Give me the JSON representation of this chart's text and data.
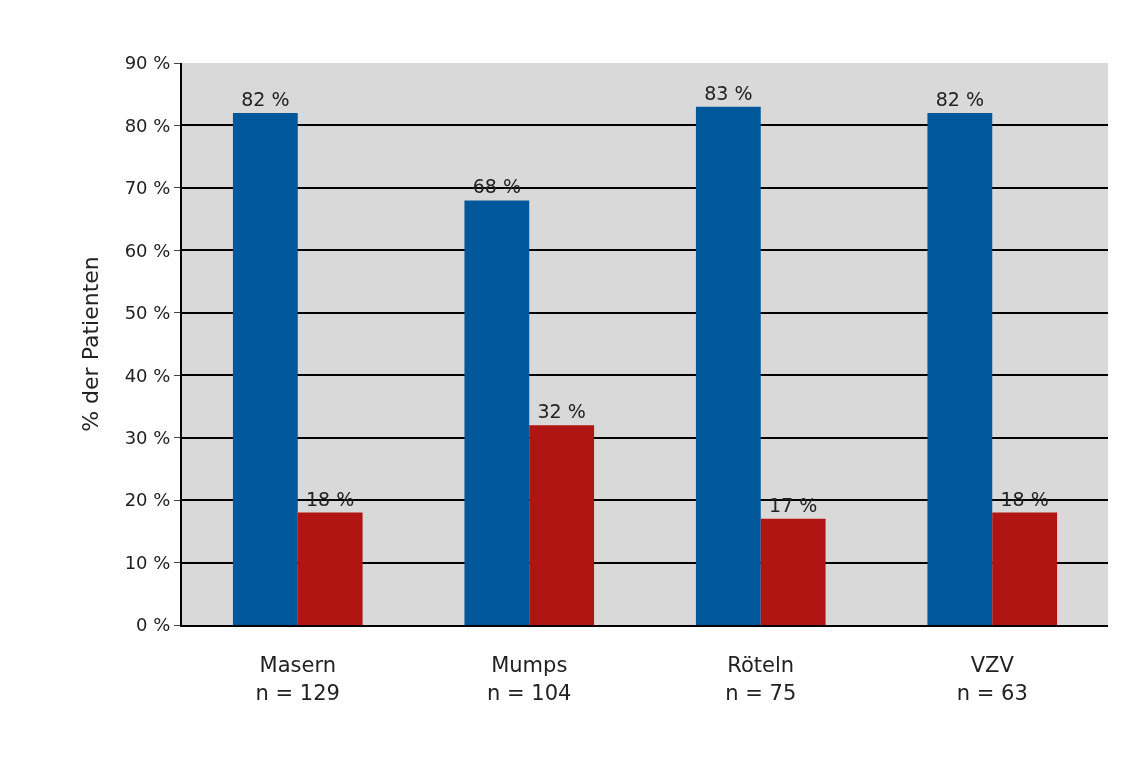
{
  "chart_data": {
    "type": "bar",
    "ylabel": "% der Patienten",
    "categories": [
      "Masern\nn = 129",
      "Mumps\nn = 104",
      "Röteln\nn = 75",
      "VZV\nn = 63"
    ],
    "series": [
      {
        "color": "#00589b",
        "values": [
          82,
          68,
          83,
          82
        ],
        "value_labels": [
          "82 %",
          "68 %",
          "83 %",
          "82 %"
        ]
      },
      {
        "color": "#b01513",
        "values": [
          18,
          32,
          17,
          18
        ],
        "value_labels": [
          "18 %",
          "32 %",
          "17 %",
          "18 %"
        ]
      }
    ],
    "ylim": [
      0,
      90
    ],
    "yticks": [
      {
        "value": 0,
        "label": "0 %"
      },
      {
        "value": 10,
        "label": "10 %"
      },
      {
        "value": 20,
        "label": "20 %"
      },
      {
        "value": 30,
        "label": "30 %"
      },
      {
        "value": 40,
        "label": "40 %"
      },
      {
        "value": 50,
        "label": "50 %"
      },
      {
        "value": 60,
        "label": "60 %"
      },
      {
        "value": 70,
        "label": "70 %"
      },
      {
        "value": 80,
        "label": "80 %"
      },
      {
        "value": 90,
        "label": "90 %"
      }
    ],
    "grid": "y"
  }
}
